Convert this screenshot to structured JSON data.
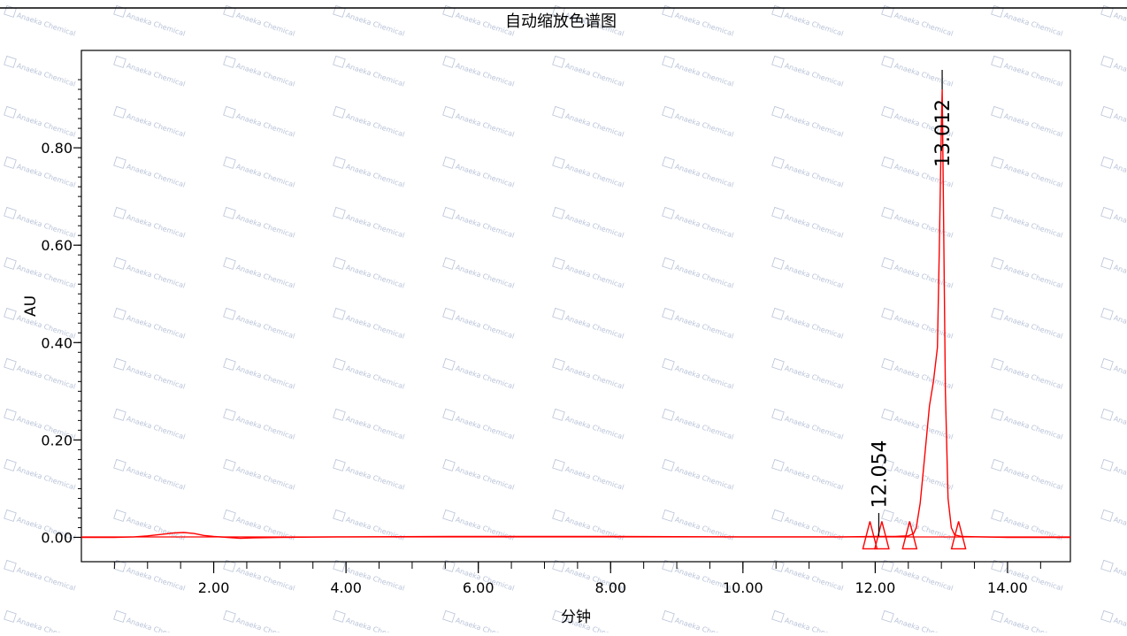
{
  "chart_data": {
    "type": "line",
    "title": "自动缩放色谱图",
    "xlabel": "分钟",
    "ylabel": "AU",
    "xlim": [
      0.0,
      14.95
    ],
    "ylim": [
      -0.05,
      1.0
    ],
    "x_ticks": [
      "2.00",
      "4.00",
      "6.00",
      "8.00",
      "10.00",
      "12.00",
      "14.00"
    ],
    "y_ticks": [
      "0.00",
      "0.20",
      "0.40",
      "0.60",
      "0.80"
    ],
    "grid": false,
    "colors": {
      "trace": "#ff0000",
      "axes": "#000000"
    },
    "series": [
      {
        "x": [
          0.0,
          0.5,
          0.8,
          1.0,
          1.2,
          1.4,
          1.55,
          1.7,
          1.85,
          2.0,
          2.2,
          2.4,
          2.6,
          3.0,
          4.0,
          6.0,
          8.0,
          10.0,
          11.5,
          12.0,
          12.3,
          12.5,
          12.58,
          12.62,
          12.68,
          12.75,
          12.82,
          12.88,
          12.94,
          12.97,
          13.0,
          13.012,
          13.03,
          13.06,
          13.1,
          13.15,
          13.2,
          13.3,
          13.6,
          14.0,
          14.95
        ],
        "y": [
          0.0,
          0.0,
          0.001,
          0.003,
          0.006,
          0.009,
          0.01,
          0.008,
          0.004,
          0.002,
          0.0,
          -0.002,
          -0.001,
          0.0,
          0.001,
          0.002,
          0.002,
          0.001,
          0.001,
          0.002,
          0.002,
          0.003,
          0.008,
          0.02,
          0.07,
          0.17,
          0.27,
          0.32,
          0.39,
          0.6,
          0.85,
          0.92,
          0.7,
          0.3,
          0.08,
          0.02,
          0.005,
          0.002,
          0.001,
          0.0,
          0.0
        ]
      }
    ],
    "peaks": [
      {
        "label": "12.054",
        "x": 12.054,
        "y": 0.002
      },
      {
        "label": "13.012",
        "x": 13.012,
        "y": 0.92
      }
    ],
    "integration_markers": [
      11.92,
      12.1,
      12.52,
      13.26
    ],
    "watermark": "Anaeka Chemical"
  }
}
